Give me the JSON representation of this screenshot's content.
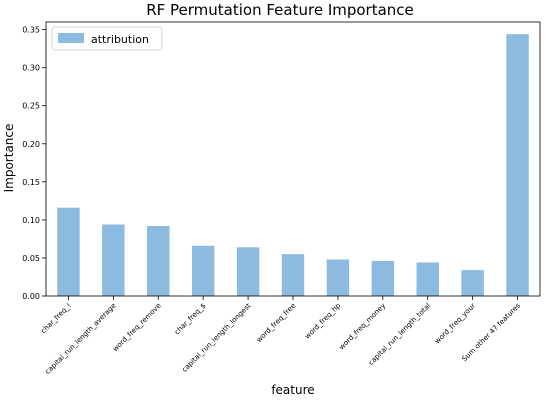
{
  "chart_data": {
    "type": "bar",
    "title": "RF Permutation Feature Importance",
    "xlabel": "feature",
    "ylabel": "Importance",
    "categories": [
      "char_freq_!",
      "capital_run_length_average",
      "word_freq_remove",
      "char_freq_$",
      "capital_run_length_longest",
      "word_freq_free",
      "word_freq_hp",
      "word_freq_money",
      "capital_run_length_total",
      "word_freq_your",
      "Sum other 47 features"
    ],
    "series": [
      {
        "name": "attribution",
        "values": [
          0.116,
          0.094,
          0.092,
          0.066,
          0.064,
          0.055,
          0.048,
          0.046,
          0.044,
          0.034,
          0.344
        ],
        "color": "#8dbadf"
      }
    ],
    "ylim": [
      0,
      0.36
    ],
    "yticks": [
      "0.00",
      "0.05",
      "0.10",
      "0.15",
      "0.20",
      "0.25",
      "0.30",
      "0.35"
    ],
    "grid": false,
    "legend_position": "top-left"
  }
}
